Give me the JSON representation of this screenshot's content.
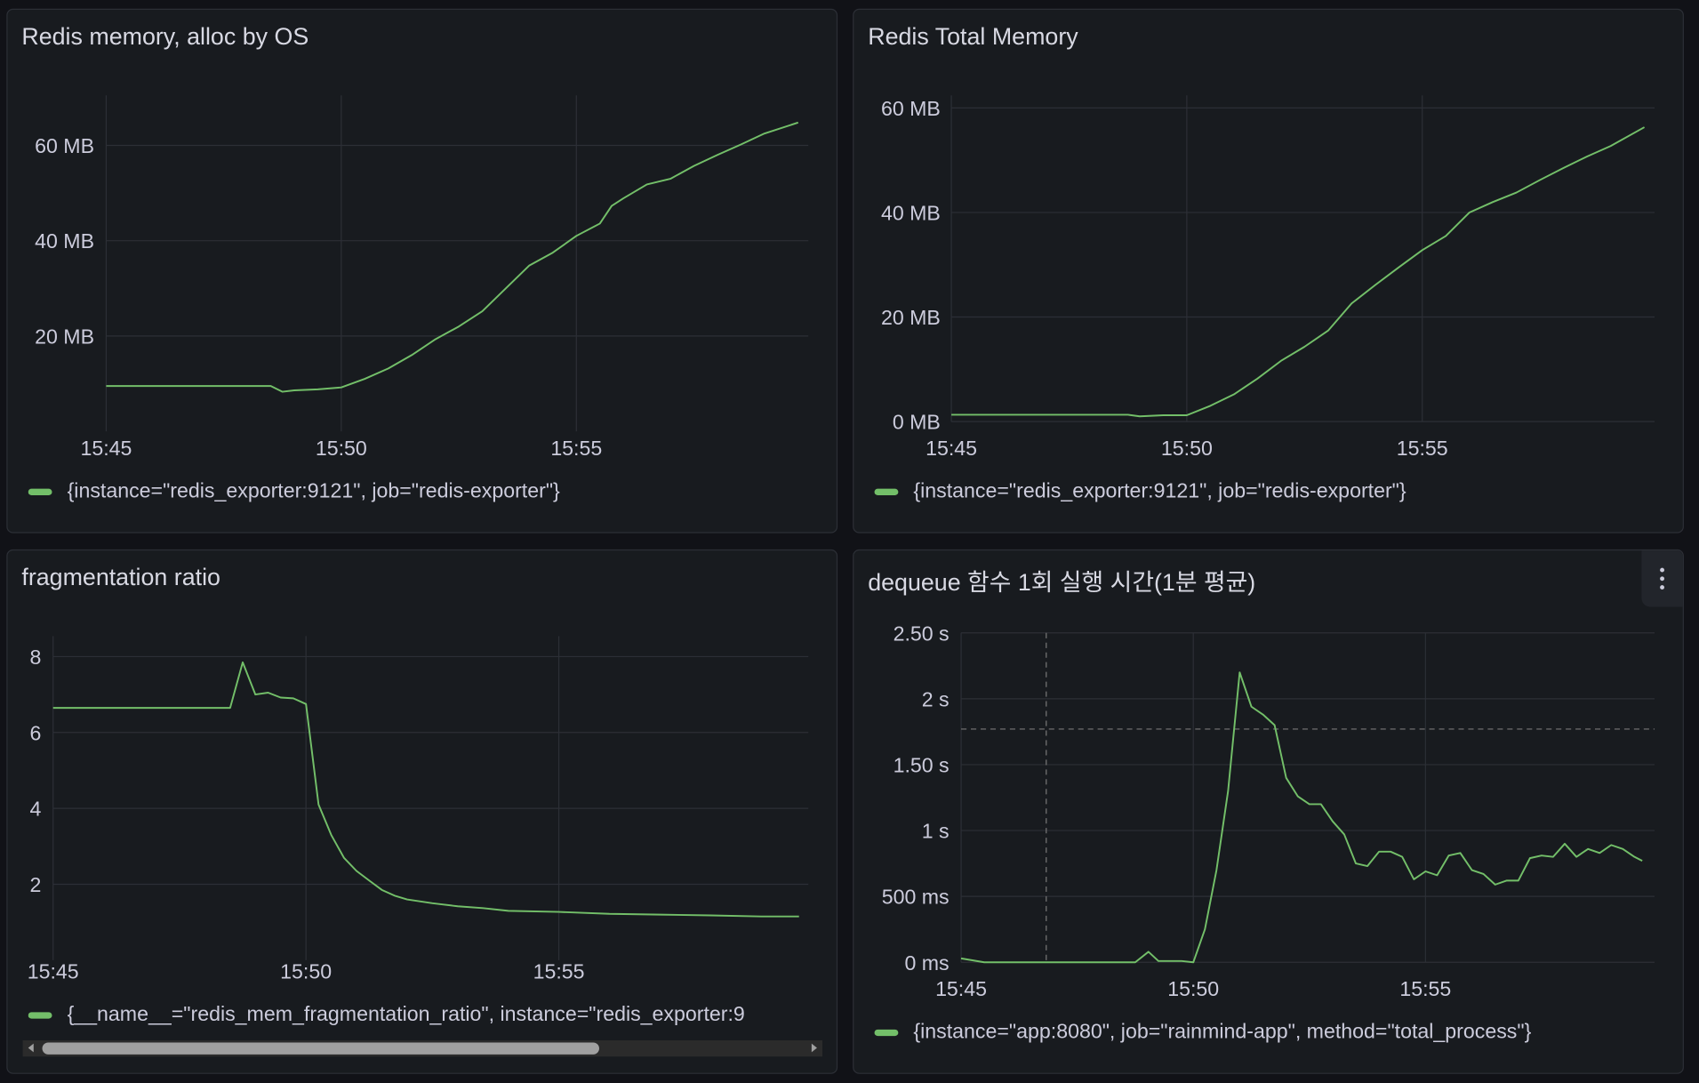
{
  "theme": {
    "background": "#111217",
    "panel": "#181b1f",
    "series_color": "#73bf69",
    "grid": "#2c2f36"
  },
  "panels": [
    {
      "title": "Redis memory, alloc by OS",
      "legend": "{instance=\"redis_exporter:9121\", job=\"redis-exporter\"}"
    },
    {
      "title": "Redis Total Memory",
      "legend": "{instance=\"redis_exporter:9121\", job=\"redis-exporter\"}"
    },
    {
      "title": "fragmentation ratio",
      "legend": "{__name__=\"redis_mem_fragmentation_ratio\", instance=\"redis_exporter:9"
    },
    {
      "title": "dequeue 함수 1회 실행 시간(1분 평균)",
      "legend": "{instance=\"app:8080\", job=\"rainmind-app\", method=\"total_process\"}",
      "menu_icon": "kebab-menu-icon"
    }
  ],
  "chart_data": [
    {
      "type": "line",
      "title": "Redis memory, alloc by OS",
      "x_ticks": [
        "15:45",
        "15:50",
        "15:55"
      ],
      "xlim": [
        "15:45:00",
        "15:59:56"
      ],
      "y_ticks": [
        20,
        40,
        60
      ],
      "y_tick_labels": [
        "20 MB",
        "40 MB",
        "60 MB"
      ],
      "ylim": [
        0,
        70.5
      ],
      "unit": "MB",
      "grid": true,
      "legend_placement": "bottom",
      "series": [
        {
          "name": "{instance=\"redis_exporter:9121\", job=\"redis-exporter\"}",
          "x": [
            "15:45:00",
            "15:45:30",
            "15:46:00",
            "15:46:30",
            "15:47:00",
            "15:47:30",
            "15:48:00",
            "15:48:30",
            "15:48:45",
            "15:49:00",
            "15:49:30",
            "15:50:00",
            "15:50:30",
            "15:51:00",
            "15:51:30",
            "15:52:00",
            "15:52:30",
            "15:53:00",
            "15:53:30",
            "15:54:00",
            "15:54:30",
            "15:55:00",
            "15:55:30",
            "15:55:45",
            "15:56:00",
            "15:56:30",
            "15:57:00",
            "15:57:30",
            "15:58:00",
            "15:58:30",
            "15:59:00",
            "15:59:43"
          ],
          "y": [
            9.5,
            9.5,
            9.5,
            9.5,
            9.5,
            9.5,
            9.5,
            9.5,
            8.3,
            8.6,
            8.8,
            9.2,
            11,
            13.2,
            16,
            19.3,
            22,
            25.2,
            30,
            34.8,
            37.5,
            41,
            43.6,
            47.3,
            48.9,
            51.8,
            53,
            55.7,
            58,
            60.2,
            62.5,
            64.8
          ]
        }
      ]
    },
    {
      "type": "line",
      "title": "Redis Total Memory",
      "x_ticks": [
        "15:45",
        "15:50",
        "15:55"
      ],
      "xlim": [
        "15:45:00",
        "15:59:56"
      ],
      "y_ticks": [
        0,
        20,
        40,
        60
      ],
      "y_tick_labels": [
        "0 MB",
        "20 MB",
        "40 MB",
        "60 MB"
      ],
      "ylim": [
        0,
        62.4
      ],
      "unit": "MB",
      "grid": true,
      "legend_placement": "bottom",
      "series": [
        {
          "name": "{instance=\"redis_exporter:9121\", job=\"redis-exporter\"}",
          "x": [
            "15:45:00",
            "15:46:00",
            "15:47:00",
            "15:48:00",
            "15:48:45",
            "15:49:00",
            "15:49:30",
            "15:50:00",
            "15:50:30",
            "15:51:00",
            "15:51:30",
            "15:52:00",
            "15:52:30",
            "15:53:00",
            "15:53:30",
            "15:54:00",
            "15:54:30",
            "15:55:00",
            "15:55:30",
            "15:56:00",
            "15:56:30",
            "15:57:00",
            "15:57:30",
            "15:58:00",
            "15:58:30",
            "15:59:00",
            "15:59:43"
          ],
          "y": [
            1.3,
            1.3,
            1.3,
            1.3,
            1.3,
            1.0,
            1.2,
            1.2,
            3.0,
            5.2,
            8.2,
            11.6,
            14.3,
            17.4,
            22.6,
            26.1,
            29.5,
            32.8,
            35.5,
            40,
            42,
            43.8,
            46.2,
            48.5,
            50.7,
            52.7,
            56.3
          ]
        }
      ]
    },
    {
      "type": "line",
      "title": "fragmentation ratio",
      "x_ticks": [
        "15:45",
        "15:50",
        "15:55"
      ],
      "xlim": [
        "15:45:00",
        "15:59:56"
      ],
      "y_ticks": [
        2,
        4,
        6,
        8
      ],
      "y_tick_labels": [
        "2",
        "4",
        "6",
        "8"
      ],
      "ylim": [
        0,
        8.54
      ],
      "grid": true,
      "legend_placement": "bottom",
      "series": [
        {
          "name": "{__name__=\"redis_mem_fragmentation_ratio\", instance=\"redis_exporter:9",
          "x": [
            "15:45:00",
            "15:46:00",
            "15:47:00",
            "15:48:00",
            "15:48:30",
            "15:48:45",
            "15:49:00",
            "15:49:15",
            "15:49:30",
            "15:49:45",
            "15:50:00",
            "15:50:15",
            "15:50:30",
            "15:50:45",
            "15:51:00",
            "15:51:15",
            "15:51:30",
            "15:51:45",
            "15:52:00",
            "15:52:30",
            "15:53:00",
            "15:53:30",
            "15:54:00",
            "15:55:00",
            "15:56:00",
            "15:57:00",
            "15:58:00",
            "15:59:00",
            "15:59:45"
          ],
          "y": [
            6.65,
            6.65,
            6.65,
            6.65,
            6.65,
            7.85,
            7.0,
            7.05,
            6.92,
            6.9,
            6.75,
            4.1,
            3.3,
            2.7,
            2.35,
            2.1,
            1.85,
            1.7,
            1.6,
            1.5,
            1.42,
            1.37,
            1.3,
            1.27,
            1.22,
            1.2,
            1.18,
            1.15,
            1.15
          ]
        }
      ]
    },
    {
      "type": "line",
      "title": "dequeue 함수 1회 실행 시간(1분 평균)",
      "x_ticks": [
        "15:45",
        "15:50",
        "15:55"
      ],
      "xlim": [
        "15:45:00",
        "15:59:56"
      ],
      "y_ticks": [
        0,
        0.5,
        1,
        1.5,
        2,
        2.5
      ],
      "y_tick_labels": [
        "0 ms",
        "500 ms",
        "1 s",
        "1.50 s",
        "2 s",
        "2.50 s"
      ],
      "ylim": [
        0,
        2.5
      ],
      "unit": "s",
      "grid": true,
      "legend_placement": "bottom",
      "crosshair": {
        "x": "15:46:50",
        "y": 1.77
      },
      "series": [
        {
          "name": "{instance=\"app:8080\", job=\"rainmind-app\", method=\"total_process\"}",
          "x": [
            "15:45:00",
            "15:45:30",
            "15:46:00",
            "15:47:00",
            "15:48:00",
            "15:48:45",
            "15:49:02",
            "15:49:15",
            "15:49:45",
            "15:50:00",
            "15:50:15",
            "15:50:30",
            "15:50:45",
            "15:51:00",
            "15:51:15",
            "15:51:30",
            "15:51:45",
            "15:52:00",
            "15:52:15",
            "15:52:30",
            "15:52:45",
            "15:53:00",
            "15:53:15",
            "15:53:30",
            "15:53:45",
            "15:54:00",
            "15:54:15",
            "15:54:30",
            "15:54:45",
            "15:55:00",
            "15:55:15",
            "15:55:30",
            "15:55:45",
            "15:56:00",
            "15:56:15",
            "15:56:30",
            "15:56:45",
            "15:57:00",
            "15:57:15",
            "15:57:30",
            "15:57:45",
            "15:58:00",
            "15:58:15",
            "15:58:30",
            "15:58:45",
            "15:59:00",
            "15:59:15",
            "15:59:30",
            "15:59:40"
          ],
          "y": [
            0.03,
            0,
            0,
            0,
            0,
            0,
            0.08,
            0.01,
            0.01,
            0,
            0.25,
            0.7,
            1.3,
            2.2,
            1.94,
            1.88,
            1.8,
            1.4,
            1.26,
            1.2,
            1.2,
            1.07,
            0.97,
            0.75,
            0.73,
            0.84,
            0.84,
            0.8,
            0.63,
            0.69,
            0.66,
            0.81,
            0.83,
            0.7,
            0.67,
            0.59,
            0.62,
            0.62,
            0.79,
            0.81,
            0.8,
            0.9,
            0.8,
            0.86,
            0.83,
            0.89,
            0.86,
            0.8,
            0.77
          ]
        }
      ]
    }
  ]
}
